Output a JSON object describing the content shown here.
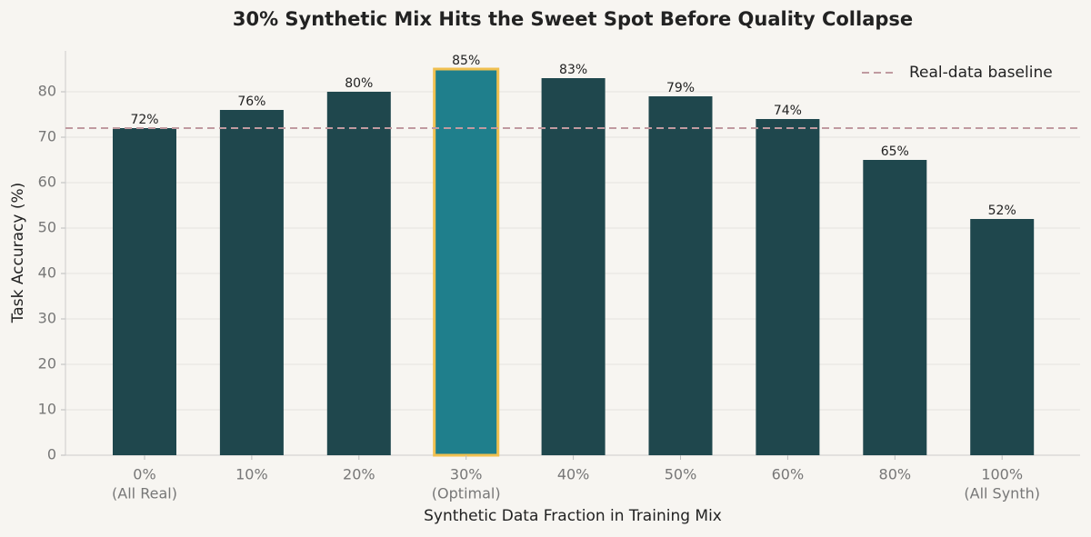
{
  "chart_data": {
    "type": "bar",
    "title": "30% Synthetic Mix Hits the Sweet Spot Before Quality Collapse",
    "xlabel": "Synthetic Data Fraction in Training Mix",
    "ylabel": "Task Accuracy (%)",
    "categories": [
      "0%",
      "10%",
      "20%",
      "30%",
      "40%",
      "50%",
      "60%",
      "80%",
      "100%"
    ],
    "category_sublabels": [
      "(All Real)",
      null,
      null,
      "(Optimal)",
      null,
      null,
      null,
      null,
      "(All Synth)"
    ],
    "values": [
      72,
      76,
      80,
      85,
      83,
      79,
      74,
      65,
      52
    ],
    "value_labels": [
      "72%",
      "76%",
      "80%",
      "85%",
      "83%",
      "79%",
      "74%",
      "65%",
      "52%"
    ],
    "color": "#1f474d",
    "highlight_index": 3,
    "highlight_color": "#1f7f8c",
    "highlight_edge": "#f0c050",
    "ylim": [
      0,
      89
    ],
    "yticks": [
      0,
      10,
      20,
      30,
      40,
      50,
      60,
      70,
      80
    ],
    "grid": true,
    "baseline": {
      "value": 72,
      "label": "Real-data baseline",
      "color": "#c09aa0"
    },
    "legend": "upper right"
  }
}
